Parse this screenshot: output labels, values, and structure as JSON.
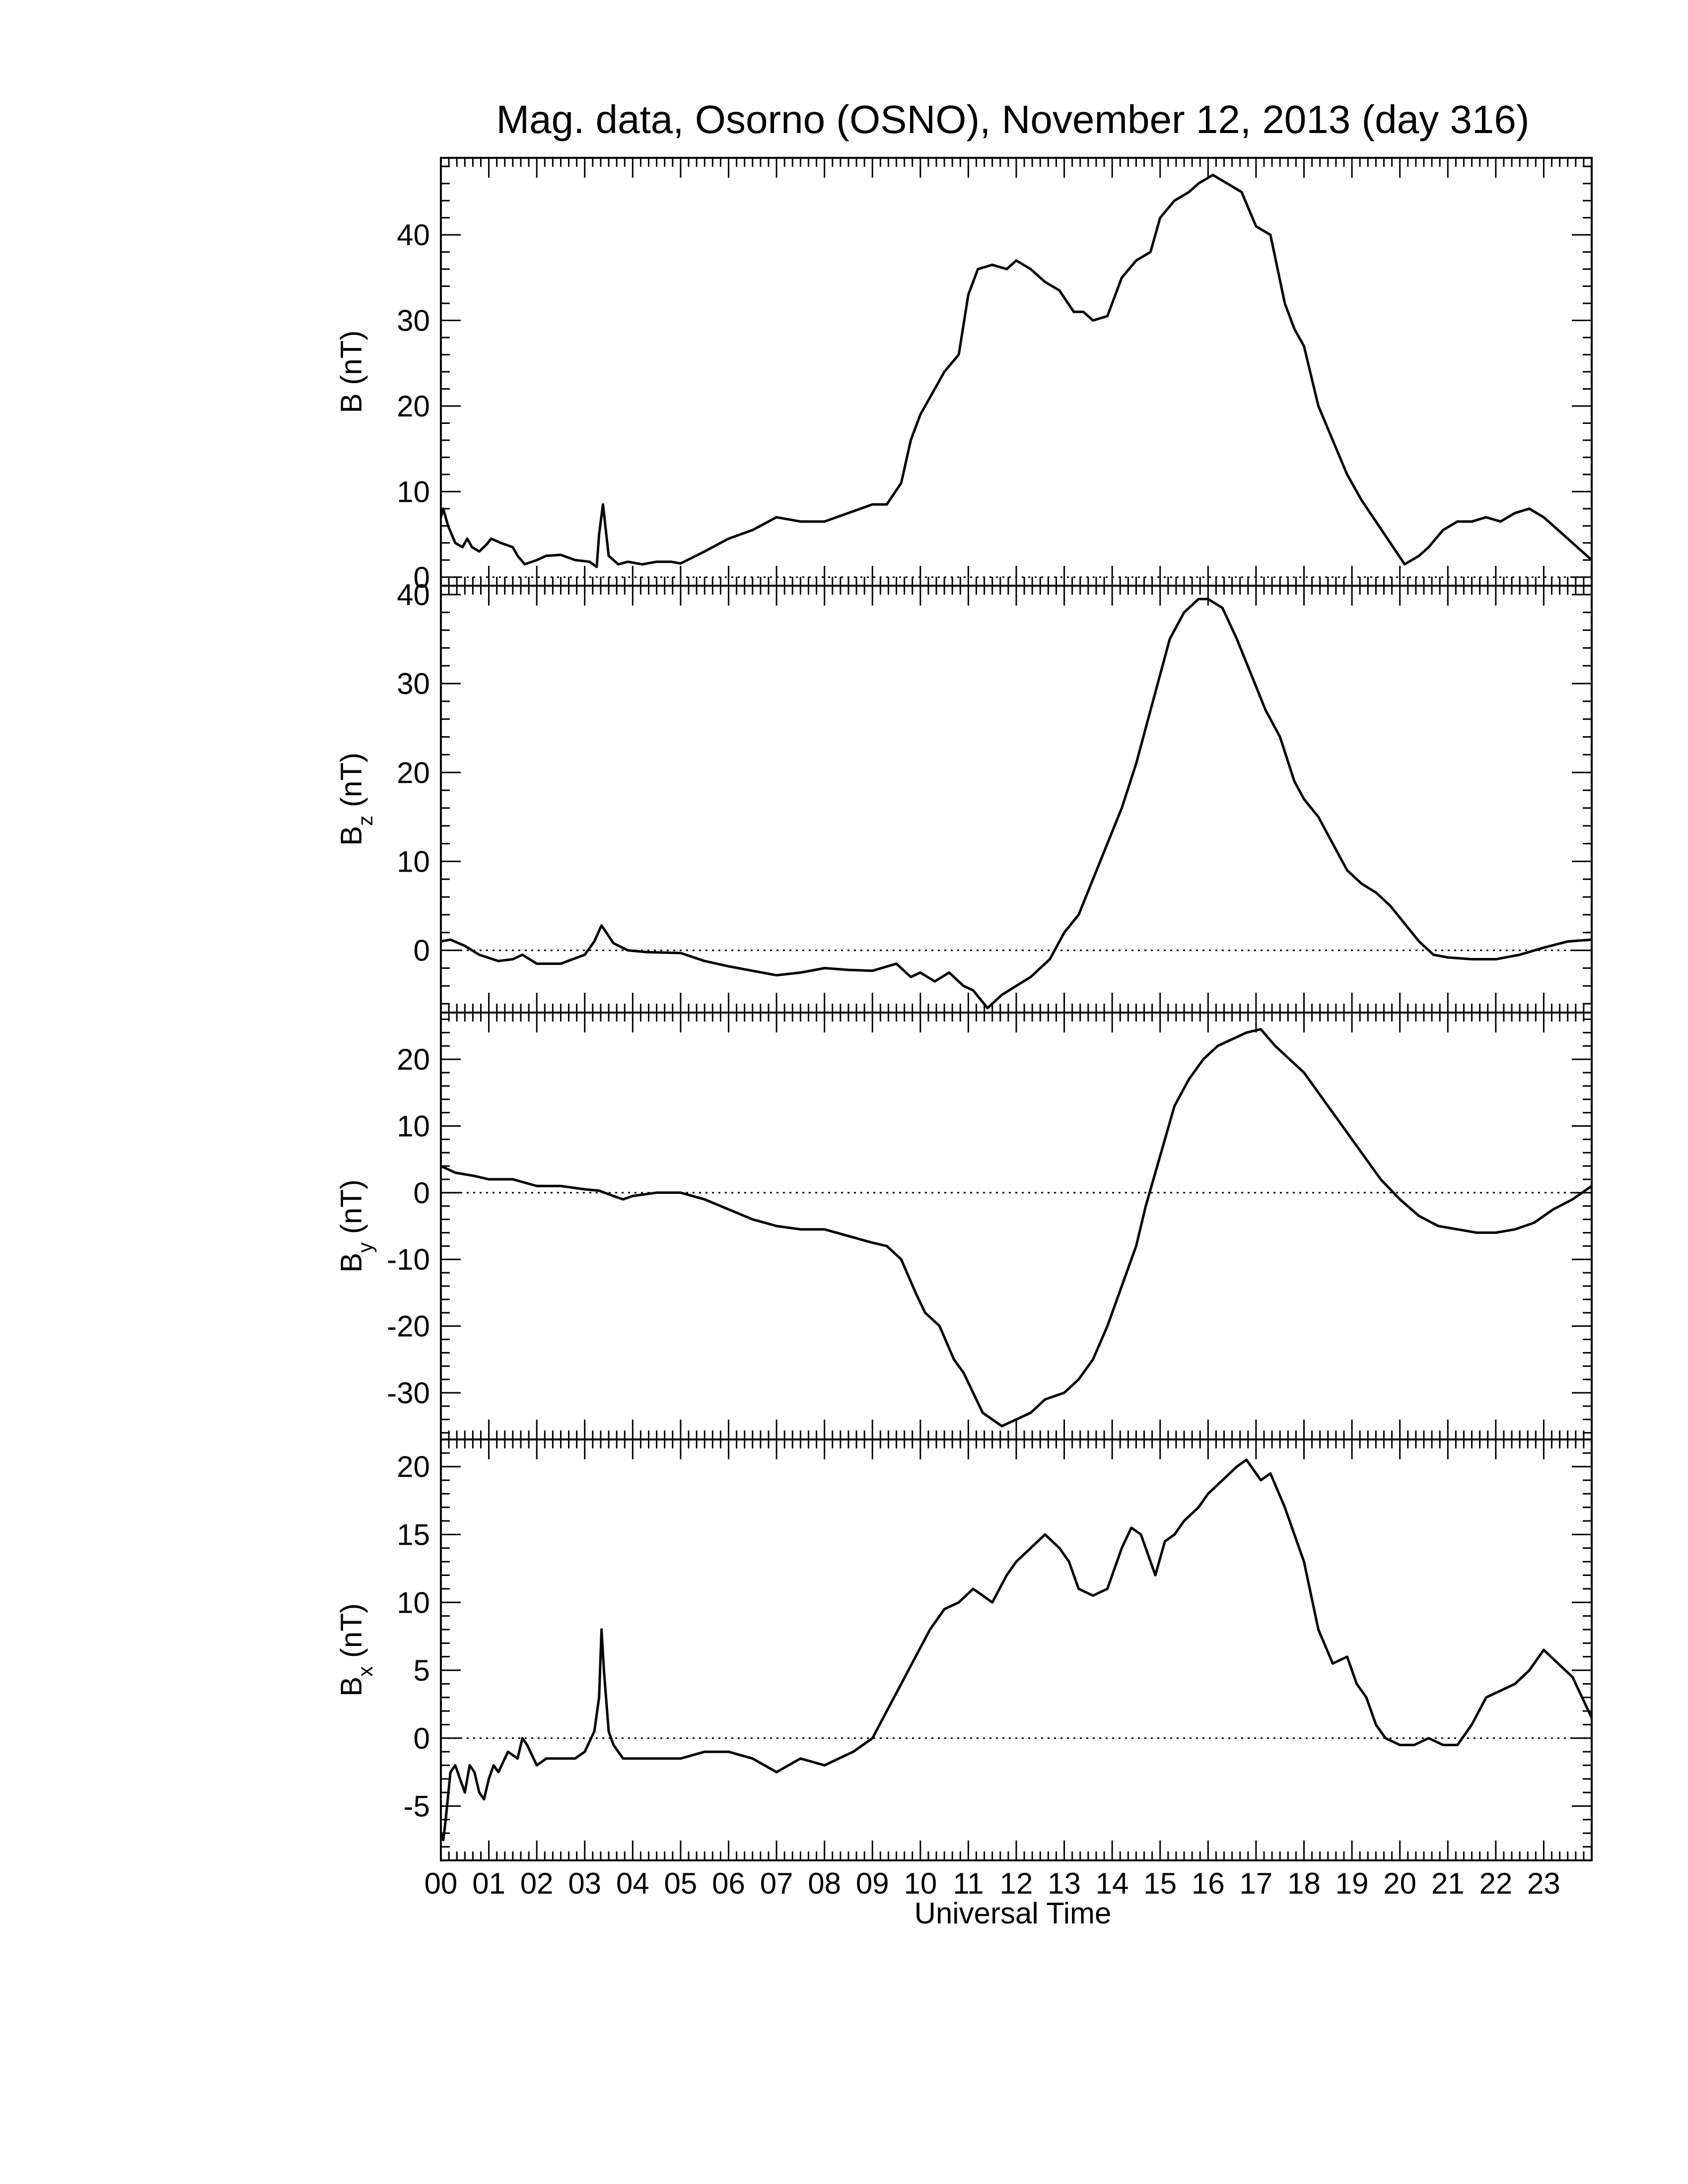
{
  "title": "Mag. data, Osorno (OSNO), November 12, 2013 (day 316)",
  "xlabel": "Universal Time",
  "colors": {
    "line": "#000000",
    "zero_line": "#000000",
    "background": "#ffffff"
  },
  "chart_data": [
    {
      "type": "line",
      "ylabel_main": "B (nT)",
      "ylabel_sub": "",
      "ylabel_tail": "",
      "xlim": [
        0,
        24
      ],
      "ylim": [
        -1,
        49
      ],
      "yticks": [
        0,
        10,
        20,
        30,
        40
      ],
      "zero_line": true,
      "series": [
        {
          "x": [
            0,
            0.05,
            0.15,
            0.3,
            0.45,
            0.55,
            0.65,
            0.8,
            0.95,
            1.05,
            1.25,
            1.5,
            1.6,
            1.75,
            2.0,
            2.2,
            2.5,
            2.8,
            3.1,
            3.25,
            3.3,
            3.38,
            3.5,
            3.7,
            3.9,
            4.2,
            4.5,
            4.8,
            5.0,
            5.5,
            6.0,
            6.5,
            7.0,
            7.5,
            8.0,
            8.5,
            9.0,
            9.3,
            9.6,
            9.8,
            10.0,
            10.2,
            10.5,
            10.8,
            11.0,
            11.2,
            11.5,
            11.8,
            12.0,
            12.3,
            12.6,
            12.9,
            13.2,
            13.4,
            13.6,
            13.9,
            14.2,
            14.5,
            14.8,
            15.0,
            15.3,
            15.6,
            15.8,
            16.1,
            16.4,
            16.7,
            17.0,
            17.3,
            17.6,
            17.8,
            18.0,
            18.3,
            18.6,
            18.9,
            19.2,
            19.5,
            19.8,
            20.1,
            20.4,
            20.6,
            20.9,
            21.2,
            21.5,
            21.8,
            22.1,
            22.4,
            22.7,
            23.0,
            23.3,
            23.6,
            24.0
          ],
          "y": [
            7,
            8,
            6,
            4,
            3.5,
            4.5,
            3.5,
            3,
            3.8,
            4.5,
            4,
            3.5,
            2.5,
            1.5,
            2,
            2.5,
            2.6,
            2,
            1.8,
            1.2,
            5,
            8.5,
            2.5,
            1.5,
            1.8,
            1.5,
            1.8,
            1.8,
            1.6,
            3,
            4.5,
            5.5,
            7,
            6.5,
            6.5,
            7.5,
            8.5,
            8.5,
            11,
            16,
            19,
            21,
            24,
            26,
            33,
            36,
            36.5,
            36,
            37,
            36,
            34.5,
            33.5,
            31,
            31,
            30,
            30.5,
            35,
            37,
            38,
            42,
            44,
            45,
            46,
            47,
            46,
            45,
            41,
            40,
            32,
            29,
            27,
            20,
            16,
            12,
            9,
            6.5,
            4,
            1.5,
            2.5,
            3.5,
            5.5,
            6.5,
            6.5,
            7,
            6.5,
            7.5,
            8,
            7,
            5.5,
            4,
            2
          ]
        }
      ]
    },
    {
      "type": "line",
      "ylabel_main": "B",
      "ylabel_sub": "z",
      "ylabel_tail": " (nT)",
      "xlim": [
        0,
        24
      ],
      "ylim": [
        -7,
        41
      ],
      "yticks": [
        0,
        10,
        20,
        30,
        40
      ],
      "zero_line": true,
      "series": [
        {
          "x": [
            0,
            0.2,
            0.5,
            0.8,
            1.2,
            1.5,
            1.7,
            2.0,
            2.5,
            3.0,
            3.2,
            3.35,
            3.6,
            3.9,
            4.3,
            5.0,
            5.5,
            6.0,
            6.5,
            7.0,
            7.5,
            8.0,
            8.5,
            9.0,
            9.5,
            9.8,
            10.0,
            10.3,
            10.6,
            10.9,
            11.1,
            11.4,
            11.7,
            12.0,
            12.3,
            12.7,
            13.0,
            13.3,
            13.6,
            13.9,
            14.2,
            14.5,
            14.8,
            15.0,
            15.2,
            15.5,
            15.8,
            16.0,
            16.3,
            16.6,
            16.9,
            17.2,
            17.5,
            17.8,
            18.0,
            18.3,
            18.6,
            18.9,
            19.2,
            19.5,
            19.8,
            20.1,
            20.4,
            20.7,
            21.0,
            21.5,
            22.0,
            22.5,
            23.0,
            23.5,
            24.0
          ],
          "y": [
            1,
            1.2,
            0.5,
            -0.5,
            -1.2,
            -1,
            -0.5,
            -1.5,
            -1.5,
            -0.5,
            1,
            2.8,
            0.8,
            0,
            -0.2,
            -0.3,
            -1.2,
            -1.8,
            -2.3,
            -2.8,
            -2.5,
            -2,
            -2.2,
            -2.3,
            -1.5,
            -3,
            -2.5,
            -3.5,
            -2.5,
            -4,
            -4.5,
            -6.5,
            -5,
            -4,
            -3,
            -1,
            2,
            4,
            8,
            12,
            16,
            21,
            27,
            31,
            35,
            38,
            39.5,
            39.5,
            38.5,
            35,
            31,
            27,
            24,
            19,
            17,
            15,
            12,
            9,
            7.5,
            6.5,
            5,
            3,
            1,
            -0.5,
            -0.8,
            -1,
            -1,
            -0.5,
            0.3,
            1,
            1.2
          ]
        }
      ]
    },
    {
      "type": "line",
      "ylabel_main": "B",
      "ylabel_sub": "y",
      "ylabel_tail": " (nT)",
      "xlim": [
        0,
        24
      ],
      "ylim": [
        -37,
        27
      ],
      "yticks": [
        -30,
        -20,
        -10,
        0,
        10,
        20
      ],
      "zero_line": true,
      "series": [
        {
          "x": [
            0,
            0.3,
            0.7,
            1.0,
            1.5,
            2.0,
            2.5,
            3.0,
            3.3,
            3.6,
            3.8,
            4.0,
            4.5,
            5.0,
            5.5,
            6.0,
            6.5,
            7.0,
            7.5,
            8.0,
            8.5,
            9.0,
            9.3,
            9.6,
            9.9,
            10.1,
            10.4,
            10.7,
            10.9,
            11.1,
            11.3,
            11.5,
            11.7,
            12.0,
            12.3,
            12.6,
            13.0,
            13.3,
            13.6,
            13.9,
            14.2,
            14.5,
            14.7,
            14.9,
            15.1,
            15.3,
            15.6,
            15.9,
            16.2,
            16.5,
            16.8,
            17.1,
            17.4,
            17.7,
            18.0,
            18.4,
            18.8,
            19.2,
            19.6,
            20.0,
            20.4,
            20.8,
            21.2,
            21.6,
            22.0,
            22.4,
            22.8,
            23.2,
            23.6,
            24.0
          ],
          "y": [
            4,
            3,
            2.5,
            2,
            2,
            1,
            1,
            0.5,
            0.3,
            -0.5,
            -1,
            -0.5,
            0,
            0,
            -1,
            -2.5,
            -4,
            -5,
            -5.5,
            -5.5,
            -6.5,
            -7.5,
            -8,
            -10,
            -15,
            -18,
            -20,
            -25,
            -27,
            -30,
            -33,
            -34,
            -35,
            -34,
            -33,
            -31,
            -30,
            -28,
            -25,
            -20,
            -14,
            -8,
            -2,
            3,
            8,
            13,
            17,
            20,
            22,
            23,
            24,
            24.5,
            22,
            20,
            18,
            14,
            10,
            6,
            2,
            -1,
            -3.5,
            -5,
            -5.5,
            -6,
            -6,
            -5.5,
            -4.5,
            -2.5,
            -1,
            1
          ]
        }
      ]
    },
    {
      "type": "line",
      "ylabel_main": "B",
      "ylabel_sub": "x",
      "ylabel_tail": " (nT)",
      "xlim": [
        0,
        24
      ],
      "ylim": [
        -9,
        22
      ],
      "yticks": [
        -5,
        0,
        5,
        10,
        15,
        20
      ],
      "zero_line": true,
      "series": [
        {
          "x": [
            0,
            0.05,
            0.1,
            0.2,
            0.3,
            0.4,
            0.5,
            0.6,
            0.7,
            0.8,
            0.9,
            1.0,
            1.1,
            1.2,
            1.4,
            1.6,
            1.7,
            1.8,
            2.0,
            2.2,
            2.5,
            2.8,
            3.0,
            3.2,
            3.3,
            3.35,
            3.4,
            3.5,
            3.6,
            3.8,
            4.0,
            4.5,
            5.0,
            5.5,
            6.0,
            6.5,
            7.0,
            7.5,
            8.0,
            8.3,
            8.6,
            9.0,
            9.3,
            9.6,
            9.9,
            10.2,
            10.5,
            10.8,
            11.1,
            11.3,
            11.5,
            11.8,
            12.0,
            12.3,
            12.6,
            12.9,
            13.1,
            13.3,
            13.6,
            13.9,
            14.2,
            14.4,
            14.6,
            14.9,
            15.1,
            15.3,
            15.5,
            15.8,
            16.0,
            16.3,
            16.6,
            16.8,
            17.1,
            17.3,
            17.6,
            17.8,
            18.0,
            18.3,
            18.6,
            18.9,
            19.1,
            19.3,
            19.5,
            19.7,
            20.0,
            20.3,
            20.6,
            20.9,
            21.2,
            21.5,
            21.8,
            22.1,
            22.4,
            22.7,
            23.0,
            23.3,
            23.6,
            24.0
          ],
          "y": [
            -7,
            -7.5,
            -6,
            -2.5,
            -2,
            -3,
            -4,
            -2,
            -2.5,
            -4,
            -4.5,
            -3,
            -2,
            -2.5,
            -1,
            -1.5,
            0,
            -0.5,
            -2,
            -1.5,
            -1.5,
            -1.5,
            -1,
            0.5,
            3,
            8,
            5,
            0.5,
            -0.5,
            -1.5,
            -1.5,
            -1.5,
            -1.5,
            -1,
            -1,
            -1.5,
            -2.5,
            -1.5,
            -2,
            -1.5,
            -1,
            0,
            2,
            4,
            6,
            8,
            9.5,
            10,
            11,
            10.5,
            10,
            12,
            13,
            14,
            15,
            14,
            13,
            11,
            10.5,
            11,
            14,
            15.5,
            15,
            12,
            14.5,
            15,
            16,
            17,
            18,
            19,
            20,
            20.5,
            19,
            19.5,
            17,
            15,
            13,
            8,
            5.5,
            6,
            4,
            3,
            1,
            0,
            -0.5,
            -0.5,
            0,
            -0.5,
            -0.5,
            1,
            3,
            3.5,
            4,
            5,
            6.5,
            5.5,
            4.5,
            1.5
          ]
        }
      ]
    }
  ],
  "xticks": [
    {
      "v": 0,
      "label": "00"
    },
    {
      "v": 1,
      "label": "01"
    },
    {
      "v": 2,
      "label": "02"
    },
    {
      "v": 3,
      "label": "03"
    },
    {
      "v": 4,
      "label": "04"
    },
    {
      "v": 5,
      "label": "05"
    },
    {
      "v": 6,
      "label": "06"
    },
    {
      "v": 7,
      "label": "07"
    },
    {
      "v": 8,
      "label": "08"
    },
    {
      "v": 9,
      "label": "09"
    },
    {
      "v": 10,
      "label": "10"
    },
    {
      "v": 11,
      "label": "11"
    },
    {
      "v": 12,
      "label": "12"
    },
    {
      "v": 13,
      "label": "13"
    },
    {
      "v": 14,
      "label": "14"
    },
    {
      "v": 15,
      "label": "15"
    },
    {
      "v": 16,
      "label": "16"
    },
    {
      "v": 17,
      "label": "17"
    },
    {
      "v": 18,
      "label": "18"
    },
    {
      "v": 19,
      "label": "19"
    },
    {
      "v": 20,
      "label": "20"
    },
    {
      "v": 21,
      "label": "21"
    },
    {
      "v": 22,
      "label": "22"
    },
    {
      "v": 23,
      "label": "23"
    }
  ]
}
